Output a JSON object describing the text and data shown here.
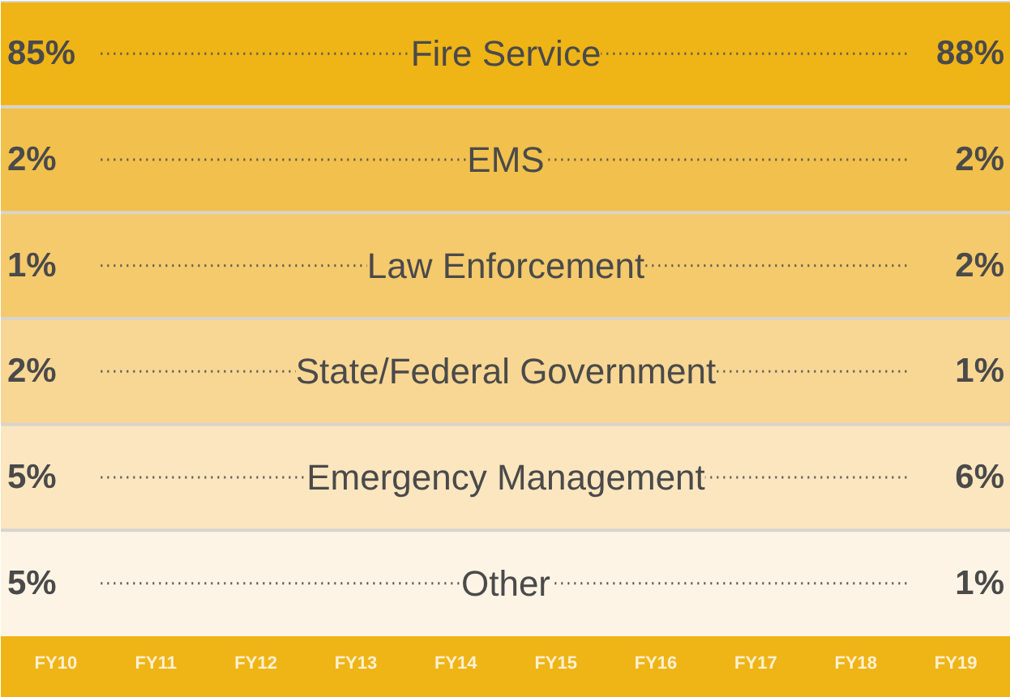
{
  "chart_data": {
    "type": "other",
    "categories": [
      "FY10",
      "FY11",
      "FY12",
      "FY13",
      "FY14",
      "FY15",
      "FY16",
      "FY17",
      "FY18",
      "FY19"
    ],
    "series": [
      {
        "name": "Fire Service",
        "color": "#efb416",
        "values": [
          85,
          null,
          null,
          null,
          null,
          null,
          null,
          null,
          null,
          88
        ],
        "value_labels": [
          "85%",
          null,
          null,
          null,
          null,
          null,
          null,
          null,
          null,
          "88%"
        ]
      },
      {
        "name": "EMS",
        "color": "#f2c04c",
        "values": [
          2,
          null,
          null,
          null,
          null,
          null,
          null,
          null,
          null,
          2
        ],
        "value_labels": [
          "2%",
          null,
          null,
          null,
          null,
          null,
          null,
          null,
          null,
          "2%"
        ]
      },
      {
        "name": "Law Enforcement",
        "color": "#f5ca6c",
        "values": [
          1,
          null,
          null,
          null,
          null,
          null,
          null,
          null,
          null,
          2
        ],
        "value_labels": [
          "1%",
          null,
          null,
          null,
          null,
          null,
          null,
          null,
          null,
          "2%"
        ]
      },
      {
        "name": "State/Federal Government",
        "color": "#f8d794",
        "values": [
          2,
          null,
          null,
          null,
          null,
          null,
          null,
          null,
          null,
          1
        ],
        "value_labels": [
          "2%",
          null,
          null,
          null,
          null,
          null,
          null,
          null,
          null,
          "1%"
        ]
      },
      {
        "name": "Emergency Management",
        "color": "#fbe6bf",
        "values": [
          5,
          null,
          null,
          null,
          null,
          null,
          null,
          null,
          null,
          6
        ],
        "value_labels": [
          "5%",
          null,
          null,
          null,
          null,
          null,
          null,
          null,
          null,
          "6%"
        ]
      },
      {
        "name": "Other",
        "color": "#fdf4e5",
        "values": [
          5,
          null,
          null,
          null,
          null,
          null,
          null,
          null,
          null,
          1
        ],
        "value_labels": [
          "5%",
          null,
          null,
          null,
          null,
          null,
          null,
          null,
          null,
          "1%"
        ]
      }
    ]
  }
}
